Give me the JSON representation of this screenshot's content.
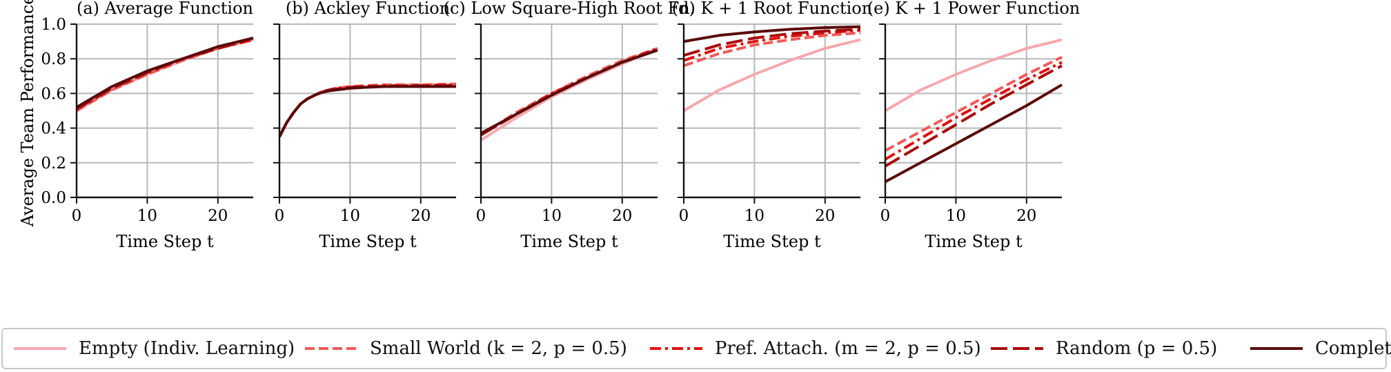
{
  "colors": {
    "empty": "#f4a9ae",
    "small_world": "#ef5a5a",
    "pref_attach": "#e01010",
    "random": "#a80c0c",
    "complete": "#5a0a0a",
    "grid": "#b8b8b8",
    "axis": "#111111"
  },
  "y_axis_label": "Average Team Performance",
  "legend": {
    "items": [
      {
        "key": "empty",
        "label": "Empty (Indiv. Learning)",
        "dash": "solid"
      },
      {
        "key": "small_world",
        "label": "Small World (k = 2, p = 0.5)",
        "dash": "dashed"
      },
      {
        "key": "pref_attach",
        "label": "Pref. Attach. (m = 2, p = 0.5)",
        "dash": "dashdot"
      },
      {
        "key": "random",
        "label": "Random (p = 0.5)",
        "dash": "longdash"
      },
      {
        "key": "complete",
        "label": "Complete",
        "dash": "solid"
      }
    ]
  },
  "chart_data": [
    {
      "type": "line",
      "title": "(a) Average Function",
      "xlabel": "Time Step t",
      "ylabel": "Average Team Performance",
      "xlim": [
        0,
        25
      ],
      "ylim": [
        0,
        1
      ],
      "xticks": [
        0,
        10,
        20
      ],
      "yticks": [
        0.0,
        0.2,
        0.4,
        0.6,
        0.8,
        1.0
      ],
      "ytick_labels": [
        "0.0",
        "0.2",
        "0.4",
        "0.6",
        "0.8",
        "1.0"
      ],
      "grid": true,
      "x": [
        0,
        5,
        10,
        15,
        20,
        25
      ],
      "series": [
        {
          "name": "Empty (Indiv. Learning)",
          "key": "empty",
          "values": [
            0.5,
            0.62,
            0.71,
            0.79,
            0.86,
            0.91
          ]
        },
        {
          "name": "Small World (k = 2, p = 0.5)",
          "key": "small_world",
          "values": [
            0.5,
            0.62,
            0.71,
            0.79,
            0.86,
            0.91
          ]
        },
        {
          "name": "Pref. Attach. (m = 2, p = 0.5)",
          "key": "pref_attach",
          "values": [
            0.51,
            0.63,
            0.72,
            0.8,
            0.86,
            0.91
          ]
        },
        {
          "name": "Random (p = 0.5)",
          "key": "random",
          "values": [
            0.51,
            0.63,
            0.72,
            0.8,
            0.86,
            0.92
          ]
        },
        {
          "name": "Complete",
          "key": "complete",
          "values": [
            0.52,
            0.64,
            0.73,
            0.8,
            0.87,
            0.92
          ]
        }
      ]
    },
    {
      "type": "line",
      "title": "(b) Ackley Function",
      "xlabel": "Time Step t",
      "xlim": [
        0,
        25
      ],
      "ylim": [
        0,
        1
      ],
      "xticks": [
        0,
        10,
        20
      ],
      "yticks": [
        0.0,
        0.2,
        0.4,
        0.6,
        0.8,
        1.0
      ],
      "grid": true,
      "x": [
        0,
        1,
        2,
        3,
        4,
        5,
        6,
        7,
        8,
        10,
        12,
        15,
        20,
        25
      ],
      "series": [
        {
          "name": "Empty (Indiv. Learning)",
          "key": "empty",
          "values": [
            0.35,
            0.43,
            0.49,
            0.54,
            0.57,
            0.59,
            0.61,
            0.62,
            0.63,
            0.64,
            0.64,
            0.645,
            0.65,
            0.65
          ]
        },
        {
          "name": "Small World (k = 2, p = 0.5)",
          "key": "small_world",
          "values": [
            0.35,
            0.43,
            0.49,
            0.54,
            0.57,
            0.59,
            0.61,
            0.62,
            0.63,
            0.64,
            0.645,
            0.65,
            0.65,
            0.655
          ]
        },
        {
          "name": "Pref. Attach. (m = 2, p = 0.5)",
          "key": "pref_attach",
          "values": [
            0.35,
            0.43,
            0.49,
            0.54,
            0.57,
            0.59,
            0.61,
            0.62,
            0.63,
            0.635,
            0.64,
            0.645,
            0.645,
            0.65
          ]
        },
        {
          "name": "Random (p = 0.5)",
          "key": "random",
          "values": [
            0.35,
            0.43,
            0.49,
            0.54,
            0.57,
            0.59,
            0.61,
            0.62,
            0.625,
            0.635,
            0.64,
            0.64,
            0.645,
            0.645
          ]
        },
        {
          "name": "Complete",
          "key": "complete",
          "values": [
            0.35,
            0.43,
            0.49,
            0.54,
            0.57,
            0.59,
            0.605,
            0.615,
            0.62,
            0.63,
            0.635,
            0.64,
            0.64,
            0.64
          ]
        }
      ]
    },
    {
      "type": "line",
      "title": "(c) Low Square-High Root Fn.",
      "xlabel": "Time Step t",
      "xlim": [
        0,
        25
      ],
      "ylim": [
        0,
        1
      ],
      "xticks": [
        0,
        10,
        20
      ],
      "yticks": [
        0.0,
        0.2,
        0.4,
        0.6,
        0.8,
        1.0
      ],
      "grid": true,
      "x": [
        0,
        5,
        10,
        15,
        20,
        25
      ],
      "series": [
        {
          "name": "Empty (Indiv. Learning)",
          "key": "empty",
          "values": [
            0.33,
            0.46,
            0.58,
            0.68,
            0.77,
            0.86
          ]
        },
        {
          "name": "Small World (k = 2, p = 0.5)",
          "key": "small_world",
          "values": [
            0.36,
            0.49,
            0.6,
            0.7,
            0.79,
            0.86
          ]
        },
        {
          "name": "Pref. Attach. (m = 2, p = 0.5)",
          "key": "pref_attach",
          "values": [
            0.36,
            0.48,
            0.6,
            0.69,
            0.78,
            0.86
          ]
        },
        {
          "name": "Random (p = 0.5)",
          "key": "random",
          "values": [
            0.36,
            0.48,
            0.59,
            0.69,
            0.78,
            0.85
          ]
        },
        {
          "name": "Complete",
          "key": "complete",
          "values": [
            0.37,
            0.48,
            0.59,
            0.69,
            0.78,
            0.85
          ]
        }
      ]
    },
    {
      "type": "line",
      "title": "(d) K + 1 Root Function",
      "xlabel": "Time Step t",
      "xlim": [
        0,
        25
      ],
      "ylim": [
        0,
        1
      ],
      "xticks": [
        0,
        10,
        20
      ],
      "yticks": [
        0.0,
        0.2,
        0.4,
        0.6,
        0.8,
        1.0
      ],
      "grid": true,
      "x": [
        0,
        5,
        10,
        15,
        20,
        25
      ],
      "series": [
        {
          "name": "Empty (Indiv. Learning)",
          "key": "empty",
          "values": [
            0.5,
            0.62,
            0.71,
            0.79,
            0.86,
            0.91
          ]
        },
        {
          "name": "Small World (k = 2, p = 0.5)",
          "key": "small_world",
          "values": [
            0.76,
            0.83,
            0.88,
            0.91,
            0.935,
            0.95
          ]
        },
        {
          "name": "Pref. Attach. (m = 2, p = 0.5)",
          "key": "pref_attach",
          "values": [
            0.79,
            0.86,
            0.9,
            0.93,
            0.95,
            0.965
          ]
        },
        {
          "name": "Random (p = 0.5)",
          "key": "random",
          "values": [
            0.82,
            0.88,
            0.92,
            0.945,
            0.96,
            0.97
          ]
        },
        {
          "name": "Complete",
          "key": "complete",
          "values": [
            0.9,
            0.935,
            0.955,
            0.97,
            0.98,
            0.985
          ]
        }
      ]
    },
    {
      "type": "line",
      "title": "(e) K + 1 Power Function",
      "xlabel": "Time Step t",
      "xlim": [
        0,
        25
      ],
      "ylim": [
        0,
        1
      ],
      "xticks": [
        0,
        10,
        20
      ],
      "yticks": [
        0.0,
        0.2,
        0.4,
        0.6,
        0.8,
        1.0
      ],
      "grid": true,
      "x": [
        0,
        5,
        10,
        15,
        20,
        25
      ],
      "series": [
        {
          "name": "Empty (Indiv. Learning)",
          "key": "empty",
          "values": [
            0.5,
            0.62,
            0.71,
            0.79,
            0.86,
            0.91
          ]
        },
        {
          "name": "Small World (k = 2, p = 0.5)",
          "key": "small_world",
          "values": [
            0.27,
            0.38,
            0.49,
            0.6,
            0.71,
            0.81
          ]
        },
        {
          "name": "Pref. Attach. (m = 2, p = 0.5)",
          "key": "pref_attach",
          "values": [
            0.22,
            0.34,
            0.46,
            0.57,
            0.68,
            0.78
          ]
        },
        {
          "name": "Random (p = 0.5)",
          "key": "random",
          "values": [
            0.18,
            0.3,
            0.42,
            0.54,
            0.65,
            0.76
          ]
        },
        {
          "name": "Complete",
          "key": "complete",
          "values": [
            0.09,
            0.2,
            0.31,
            0.42,
            0.53,
            0.65
          ]
        }
      ]
    }
  ]
}
